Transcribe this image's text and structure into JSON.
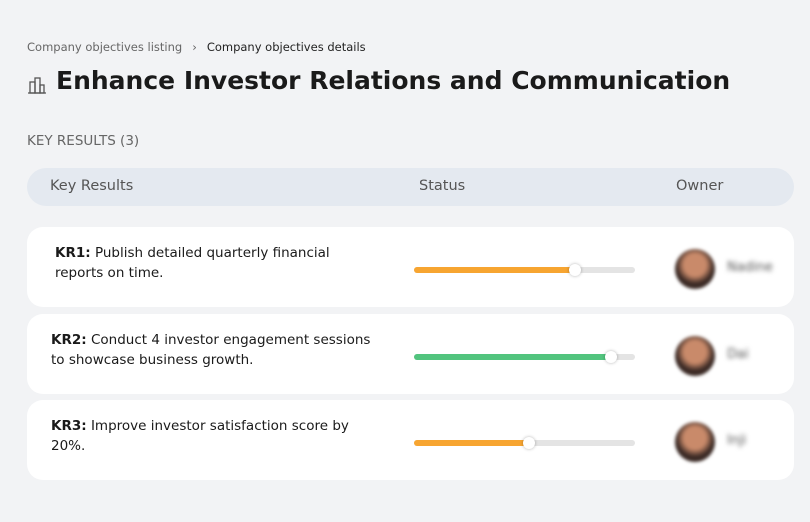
{
  "breadcrumb": {
    "items": [
      "Company objectives listing",
      "Company objectives details"
    ]
  },
  "header": {
    "title": "Enhance Investor Relations and Communication"
  },
  "section": {
    "title": "KEY RESULTS (3)"
  },
  "table": {
    "columns": [
      "Key Results",
      "Status",
      "Owner"
    ],
    "rows": [
      {
        "code": "KR1:",
        "text": "Publish detailed quarterly financial reports on time.",
        "progress": 73,
        "color": "#f7a531",
        "owner": "Nadine"
      },
      {
        "code": "KR2:",
        "text": "Conduct 4 investor engagement sessions to showcase business growth.",
        "progress": 89,
        "color": "#52c47e",
        "owner": "Dai"
      },
      {
        "code": "KR3:",
        "text": "Improve investor satisfaction score by 20%.",
        "progress": 52,
        "color": "#f7a531",
        "owner": "Inji"
      }
    ]
  }
}
